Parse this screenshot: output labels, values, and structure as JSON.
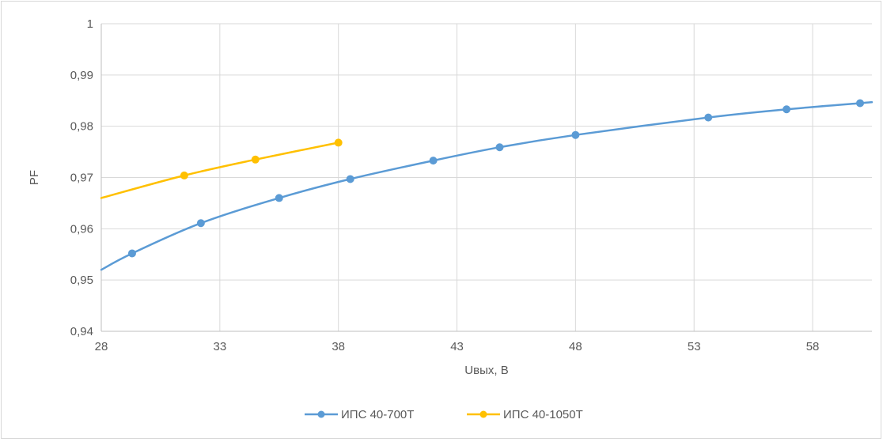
{
  "chart_data": {
    "type": "line",
    "title": "",
    "xlabel": "Uвых, В",
    "ylabel": "PF",
    "xlim": [
      28,
      60.5
    ],
    "ylim": [
      0.94,
      1.0
    ],
    "x_ticks": [
      28,
      33,
      38,
      43,
      48,
      53,
      58
    ],
    "x_tick_labels": [
      "28",
      "33",
      "38",
      "43",
      "48",
      "53",
      "58"
    ],
    "y_ticks": [
      0.94,
      0.95,
      0.96,
      0.97,
      0.98,
      0.99,
      1.0
    ],
    "y_tick_labels": [
      "0,94",
      "0,95",
      "0,96",
      "0,97",
      "0,98",
      "0,99",
      "1"
    ],
    "grid": true,
    "legend_position": "bottom",
    "series": [
      {
        "name": "ИПС 40-700Т",
        "color": "#5b9bd5",
        "markers": [
          {
            "x": 29.3,
            "y": 0.9552
          },
          {
            "x": 32.2,
            "y": 0.9611
          },
          {
            "x": 35.5,
            "y": 0.966
          },
          {
            "x": 38.5,
            "y": 0.9697
          },
          {
            "x": 42.0,
            "y": 0.9733
          },
          {
            "x": 44.8,
            "y": 0.9759
          },
          {
            "x": 48.0,
            "y": 0.9783
          },
          {
            "x": 53.6,
            "y": 0.9817
          },
          {
            "x": 56.9,
            "y": 0.9833
          },
          {
            "x": 60.0,
            "y": 0.9845
          }
        ],
        "line_start": {
          "x": 28.0,
          "y": 0.952
        },
        "line_end": {
          "x": 60.5,
          "y": 0.9847
        }
      },
      {
        "name": "ИПС 40-1050Т",
        "color": "#ffc000",
        "markers": [
          {
            "x": 31.5,
            "y": 0.9704
          },
          {
            "x": 34.5,
            "y": 0.9735
          },
          {
            "x": 38.0,
            "y": 0.9768
          }
        ],
        "line_start": {
          "x": 28.0,
          "y": 0.966
        },
        "line_end": {
          "x": 38.0,
          "y": 0.9768
        }
      }
    ]
  }
}
